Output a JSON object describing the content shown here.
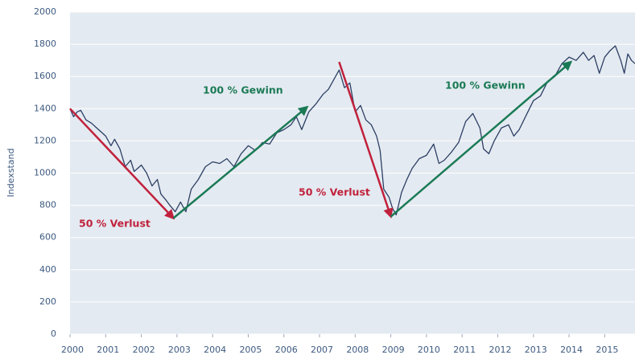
{
  "chart_data": {
    "type": "line",
    "y_label": "Indexstand",
    "xlim": [
      2000,
      2015.85
    ],
    "xticks": [
      2000,
      2001,
      2002,
      2003,
      2004,
      2005,
      2006,
      2007,
      2008,
      2009,
      2010,
      2011,
      2012,
      2013,
      2014,
      2015
    ],
    "ylim": [
      0,
      2000
    ],
    "yticks": [
      0,
      200,
      400,
      600,
      800,
      1000,
      1200,
      1400,
      1600,
      1800,
      2000
    ],
    "grid": true,
    "series": [
      {
        "color": "#2b3f64",
        "x": [
          2000,
          2000.1,
          2000.2,
          2000.3,
          2000.45,
          2000.6,
          2000.75,
          2000.9,
          2001.0,
          2001.15,
          2001.25,
          2001.4,
          2001.55,
          2001.7,
          2001.8,
          2002.0,
          2002.15,
          2002.3,
          2002.45,
          2002.55,
          2002.7,
          2002.8,
          2002.95,
          2003.1,
          2003.25,
          2003.4,
          2003.6,
          2003.8,
          2004.0,
          2004.2,
          2004.4,
          2004.6,
          2004.8,
          2005.0,
          2005.2,
          2005.4,
          2005.6,
          2005.8,
          2006.0,
          2006.2,
          2006.35,
          2006.5,
          2006.7,
          2006.9,
          2007.1,
          2007.25,
          2007.4,
          2007.55,
          2007.7,
          2007.85,
          2008.0,
          2008.15,
          2008.3,
          2008.45,
          2008.6,
          2008.7,
          2008.8,
          2008.95,
          2009.05,
          2009.15,
          2009.3,
          2009.45,
          2009.6,
          2009.8,
          2010.0,
          2010.2,
          2010.35,
          2010.5,
          2010.7,
          2010.9,
          2011.1,
          2011.3,
          2011.5,
          2011.6,
          2011.75,
          2011.9,
          2012.1,
          2012.3,
          2012.45,
          2012.6,
          2012.8,
          2013.0,
          2013.2,
          2013.4,
          2013.6,
          2013.8,
          2014.0,
          2014.2,
          2014.4,
          2014.55,
          2014.7,
          2014.85,
          2015.0,
          2015.15,
          2015.3,
          2015.45,
          2015.55,
          2015.65,
          2015.75,
          2015.85
        ],
        "values": [
          1400,
          1350,
          1380,
          1390,
          1330,
          1310,
          1280,
          1250,
          1230,
          1170,
          1210,
          1150,
          1040,
          1080,
          1010,
          1050,
          1000,
          920,
          960,
          870,
          830,
          800,
          760,
          820,
          760,
          900,
          960,
          1040,
          1070,
          1060,
          1090,
          1040,
          1120,
          1170,
          1140,
          1190,
          1180,
          1250,
          1270,
          1300,
          1350,
          1270,
          1380,
          1430,
          1490,
          1520,
          1580,
          1640,
          1530,
          1560,
          1380,
          1420,
          1330,
          1300,
          1230,
          1140,
          900,
          850,
          780,
          740,
          880,
          960,
          1030,
          1090,
          1110,
          1180,
          1060,
          1080,
          1130,
          1190,
          1320,
          1370,
          1280,
          1150,
          1120,
          1200,
          1280,
          1300,
          1230,
          1270,
          1360,
          1450,
          1480,
          1570,
          1600,
          1680,
          1720,
          1700,
          1750,
          1700,
          1730,
          1620,
          1720,
          1760,
          1790,
          1700,
          1620,
          1740,
          1700,
          1680
        ]
      }
    ],
    "arrows": [
      {
        "color": "#c0213c",
        "x": [
          2000,
          2002.9
        ],
        "y": [
          1400,
          720
        ]
      },
      {
        "color": "#1a7a55",
        "x": [
          2002.9,
          2006.65
        ],
        "y": [
          720,
          1410
        ]
      },
      {
        "color": "#c0213c",
        "x": [
          2007.55,
          2009.0
        ],
        "y": [
          1690,
          730
        ]
      },
      {
        "color": "#1a7a55",
        "x": [
          2009.0,
          2014.05
        ],
        "y": [
          730,
          1690
        ]
      }
    ],
    "annotations": [
      "50 % Verlust",
      "100 % Gewinn",
      "50 % Verlust",
      "100 % Gewinn"
    ]
  }
}
